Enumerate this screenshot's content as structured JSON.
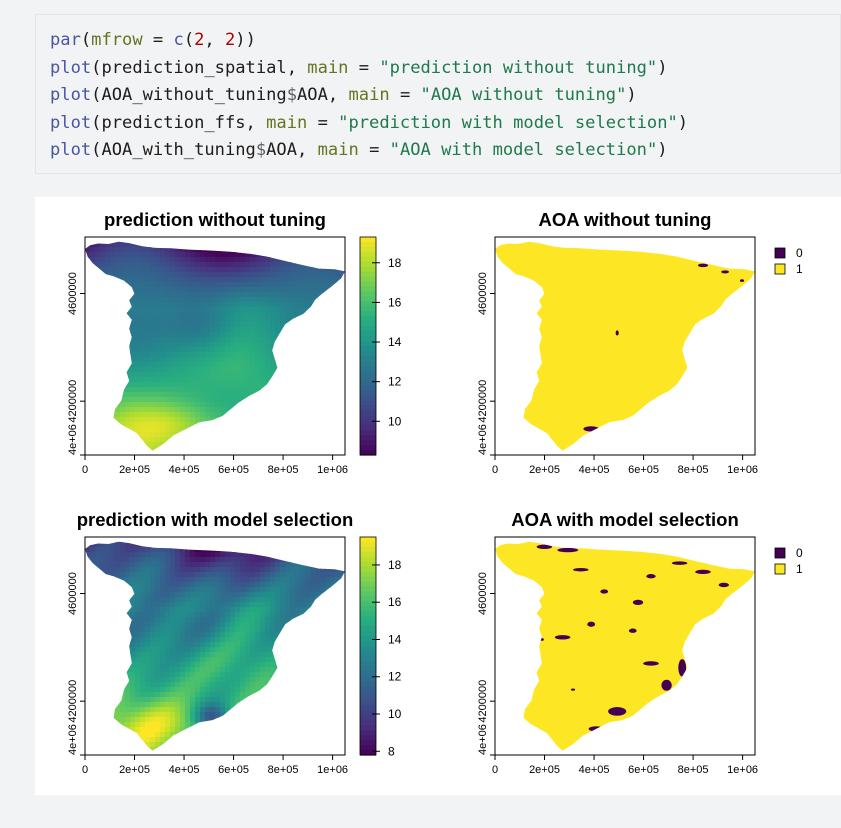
{
  "code": {
    "lines": [
      {
        "fn": "par",
        "p1": "(",
        "arg": "mfrow",
        "p2": " = ",
        "fn2": "c",
        "p3": "(",
        "n1": "2",
        "p4": ", ",
        "n2": "2",
        "p5": "))"
      },
      {
        "fn": "plot",
        "p1": "(prediction_spatial, ",
        "arg": "main",
        "p2": " = ",
        "str": "\"prediction without tuning\"",
        "p3": ")"
      },
      {
        "fn": "plot",
        "p1": "(AOA_without_tuning",
        "op": "$",
        "p1b": "AOA, ",
        "arg": "main",
        "p2": " = ",
        "str": "\"AOA without tuning\"",
        "p3": ")"
      },
      {
        "fn": "plot",
        "p1": "(prediction_ffs, ",
        "arg": "main",
        "p2": " = ",
        "str": "\"prediction with model selection\"",
        "p3": ")"
      },
      {
        "fn": "plot",
        "p1": "(AOA_with_tuning",
        "op": "$",
        "p1b": "AOA, ",
        "arg": "main",
        "p2": " = ",
        "str": "\"AOA with model selection\"",
        "p3": ")"
      }
    ]
  },
  "colors": {
    "viridis": [
      "#440154",
      "#472d7b",
      "#3b528b",
      "#2c728e",
      "#21918c",
      "#28ae80",
      "#5ec962",
      "#addc30",
      "#fde725"
    ],
    "aoa_0": "#440154",
    "aoa_1": "#fde725"
  },
  "chart_data": [
    {
      "type": "heatmap",
      "title": "prediction without tuning",
      "x_ticks": [
        "0",
        "2e+05",
        "4e+05",
        "6e+05",
        "8e+05",
        "1e+06"
      ],
      "y_ticks": [
        "4e+06",
        "4200000",
        "4600000"
      ],
      "xlim": [
        0,
        1050000
      ],
      "ylim": [
        4000000,
        4810000
      ],
      "colorbar": {
        "ticks": [
          "10",
          "12",
          "14",
          "16",
          "18"
        ],
        "range": [
          8.3,
          19.3
        ]
      },
      "legend": "colorbar-right"
    },
    {
      "type": "heatmap",
      "title": "AOA without tuning",
      "x_ticks": [
        "0",
        "2e+05",
        "4e+05",
        "6e+05",
        "8e+05",
        "1e+06"
      ],
      "y_ticks": [
        "4e+06",
        "4200000",
        "4600000"
      ],
      "xlim": [
        0,
        1050000
      ],
      "ylim": [
        4000000,
        4810000
      ],
      "legend_entries": [
        "0",
        "1"
      ],
      "legend": "top-right"
    },
    {
      "type": "heatmap",
      "title": "prediction with model selection",
      "x_ticks": [
        "0",
        "2e+05",
        "4e+05",
        "6e+05",
        "8e+05",
        "1e+06"
      ],
      "y_ticks": [
        "4e+06",
        "4200000",
        "4600000"
      ],
      "xlim": [
        0,
        1050000
      ],
      "ylim": [
        4000000,
        4810000
      ],
      "colorbar": {
        "ticks": [
          "8",
          "10",
          "12",
          "14",
          "16",
          "18"
        ],
        "range": [
          7.8,
          19.5
        ]
      },
      "legend": "colorbar-right"
    },
    {
      "type": "heatmap",
      "title": "AOA with model selection",
      "x_ticks": [
        "0",
        "2e+05",
        "4e+05",
        "6e+05",
        "8e+05",
        "1e+06"
      ],
      "y_ticks": [
        "4e+06",
        "4200000",
        "4600000"
      ],
      "xlim": [
        0,
        1050000
      ],
      "ylim": [
        4000000,
        4810000
      ],
      "legend_entries": [
        "0",
        "1"
      ],
      "legend": "top-right"
    }
  ]
}
